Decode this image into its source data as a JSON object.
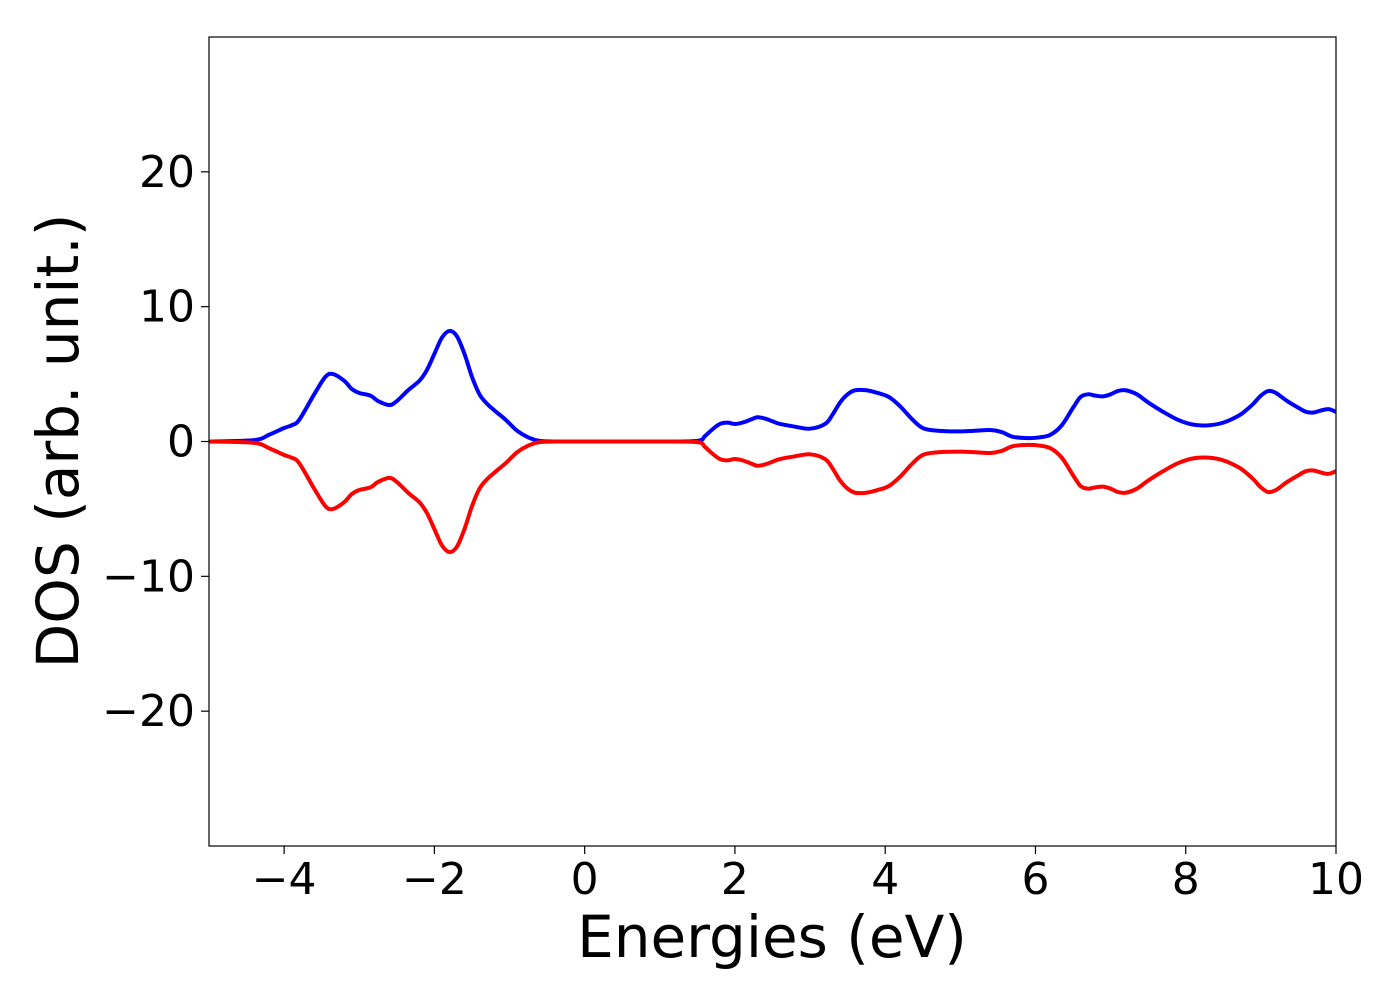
{
  "chart_data": {
    "type": "line",
    "title": "",
    "xlabel": "Energies (eV)",
    "ylabel": "DOS (arb. unit.)",
    "xlim": [
      -5,
      10
    ],
    "ylim": [
      -30,
      30
    ],
    "x_ticks": [
      -4,
      -2,
      0,
      2,
      4,
      6,
      8,
      10
    ],
    "x_tick_labels": [
      "−4",
      "−2",
      "0",
      "2",
      "4",
      "6",
      "8",
      "10"
    ],
    "y_ticks": [
      -20,
      -10,
      0,
      10,
      20
    ],
    "y_tick_labels": [
      "−20",
      "−10",
      "0",
      "10",
      "20"
    ],
    "grid": false,
    "legend": "none",
    "series": [
      {
        "color": "#0000ff",
        "x": [
          -5.0,
          -4.4,
          -4.2,
          -4.0,
          -3.9,
          -3.8,
          -3.6,
          -3.45,
          -3.35,
          -3.2,
          -3.1,
          -3.0,
          -2.85,
          -2.75,
          -2.6,
          -2.5,
          -2.35,
          -2.2,
          -2.1,
          -2.0,
          -1.9,
          -1.8,
          -1.7,
          -1.6,
          -1.5,
          -1.4,
          -1.3,
          -1.2,
          -1.05,
          -0.9,
          -0.75,
          -0.6,
          -0.3,
          0.0,
          0.5,
          1.0,
          1.5,
          1.6,
          1.7,
          1.8,
          1.9,
          2.0,
          2.1,
          2.2,
          2.3,
          2.4,
          2.5,
          2.6,
          2.8,
          3.0,
          3.2,
          3.3,
          3.4,
          3.5,
          3.6,
          3.75,
          3.9,
          4.05,
          4.2,
          4.35,
          4.5,
          4.7,
          5.0,
          5.2,
          5.4,
          5.55,
          5.7,
          5.9,
          6.05,
          6.2,
          6.35,
          6.5,
          6.6,
          6.7,
          6.8,
          6.9,
          7.0,
          7.1,
          7.2,
          7.35,
          7.5,
          7.7,
          7.9,
          8.1,
          8.3,
          8.5,
          8.7,
          8.8,
          8.9,
          9.0,
          9.1,
          9.2,
          9.35,
          9.5,
          9.6,
          9.7,
          9.8,
          9.9,
          10.0
        ],
        "values": [
          0.0,
          0.1,
          0.5,
          1.0,
          1.2,
          1.6,
          3.5,
          4.8,
          5.0,
          4.5,
          3.9,
          3.6,
          3.4,
          3.0,
          2.7,
          3.0,
          3.8,
          4.5,
          5.3,
          6.5,
          7.7,
          8.2,
          7.8,
          6.5,
          4.8,
          3.5,
          2.8,
          2.3,
          1.6,
          0.8,
          0.3,
          0.05,
          0.0,
          0.0,
          0.0,
          0.0,
          0.05,
          0.4,
          0.9,
          1.3,
          1.4,
          1.3,
          1.4,
          1.6,
          1.8,
          1.7,
          1.5,
          1.3,
          1.1,
          0.95,
          1.3,
          2.0,
          2.9,
          3.5,
          3.8,
          3.8,
          3.6,
          3.3,
          2.6,
          1.7,
          1.0,
          0.8,
          0.75,
          0.8,
          0.85,
          0.7,
          0.35,
          0.25,
          0.3,
          0.5,
          1.2,
          2.5,
          3.3,
          3.5,
          3.4,
          3.35,
          3.5,
          3.75,
          3.8,
          3.5,
          2.9,
          2.2,
          1.6,
          1.25,
          1.2,
          1.4,
          1.9,
          2.3,
          2.8,
          3.4,
          3.75,
          3.6,
          3.0,
          2.5,
          2.2,
          2.15,
          2.3,
          2.4,
          2.2
        ]
      },
      {
        "color": "#ff0000",
        "x": [
          -5.0,
          -4.4,
          -4.2,
          -4.0,
          -3.9,
          -3.8,
          -3.6,
          -3.45,
          -3.35,
          -3.2,
          -3.1,
          -3.0,
          -2.85,
          -2.75,
          -2.6,
          -2.5,
          -2.35,
          -2.2,
          -2.1,
          -2.0,
          -1.9,
          -1.8,
          -1.7,
          -1.6,
          -1.5,
          -1.4,
          -1.3,
          -1.2,
          -1.05,
          -0.9,
          -0.75,
          -0.6,
          -0.3,
          0.0,
          0.5,
          1.0,
          1.5,
          1.6,
          1.7,
          1.8,
          1.9,
          2.0,
          2.1,
          2.2,
          2.3,
          2.4,
          2.5,
          2.6,
          2.8,
          3.0,
          3.2,
          3.3,
          3.4,
          3.5,
          3.6,
          3.75,
          3.9,
          4.05,
          4.2,
          4.35,
          4.5,
          4.7,
          5.0,
          5.2,
          5.4,
          5.55,
          5.7,
          5.9,
          6.05,
          6.2,
          6.35,
          6.5,
          6.6,
          6.7,
          6.8,
          6.9,
          7.0,
          7.1,
          7.2,
          7.35,
          7.5,
          7.7,
          7.9,
          8.1,
          8.3,
          8.5,
          8.7,
          8.8,
          8.9,
          9.0,
          9.1,
          9.2,
          9.35,
          9.5,
          9.6,
          9.7,
          9.8,
          9.9,
          10.0
        ],
        "values": [
          0.0,
          -0.1,
          -0.5,
          -1.0,
          -1.2,
          -1.6,
          -3.5,
          -4.8,
          -5.0,
          -4.5,
          -3.9,
          -3.6,
          -3.4,
          -3.0,
          -2.7,
          -3.0,
          -3.8,
          -4.5,
          -5.3,
          -6.5,
          -7.7,
          -8.2,
          -7.8,
          -6.5,
          -4.8,
          -3.5,
          -2.8,
          -2.3,
          -1.6,
          -0.8,
          -0.3,
          -0.05,
          0.0,
          0.0,
          0.0,
          0.0,
          -0.05,
          -0.4,
          -0.9,
          -1.3,
          -1.4,
          -1.3,
          -1.4,
          -1.6,
          -1.8,
          -1.7,
          -1.5,
          -1.3,
          -1.1,
          -0.95,
          -1.3,
          -2.0,
          -2.9,
          -3.5,
          -3.8,
          -3.8,
          -3.6,
          -3.3,
          -2.6,
          -1.7,
          -1.0,
          -0.8,
          -0.75,
          -0.8,
          -0.85,
          -0.7,
          -0.35,
          -0.25,
          -0.3,
          -0.5,
          -1.2,
          -2.5,
          -3.3,
          -3.5,
          -3.4,
          -3.35,
          -3.5,
          -3.75,
          -3.8,
          -3.5,
          -2.9,
          -2.2,
          -1.6,
          -1.25,
          -1.2,
          -1.4,
          -1.9,
          -2.3,
          -2.8,
          -3.4,
          -3.75,
          -3.6,
          -3.0,
          -2.5,
          -2.2,
          -2.15,
          -2.3,
          -2.4,
          -2.2
        ]
      }
    ]
  }
}
